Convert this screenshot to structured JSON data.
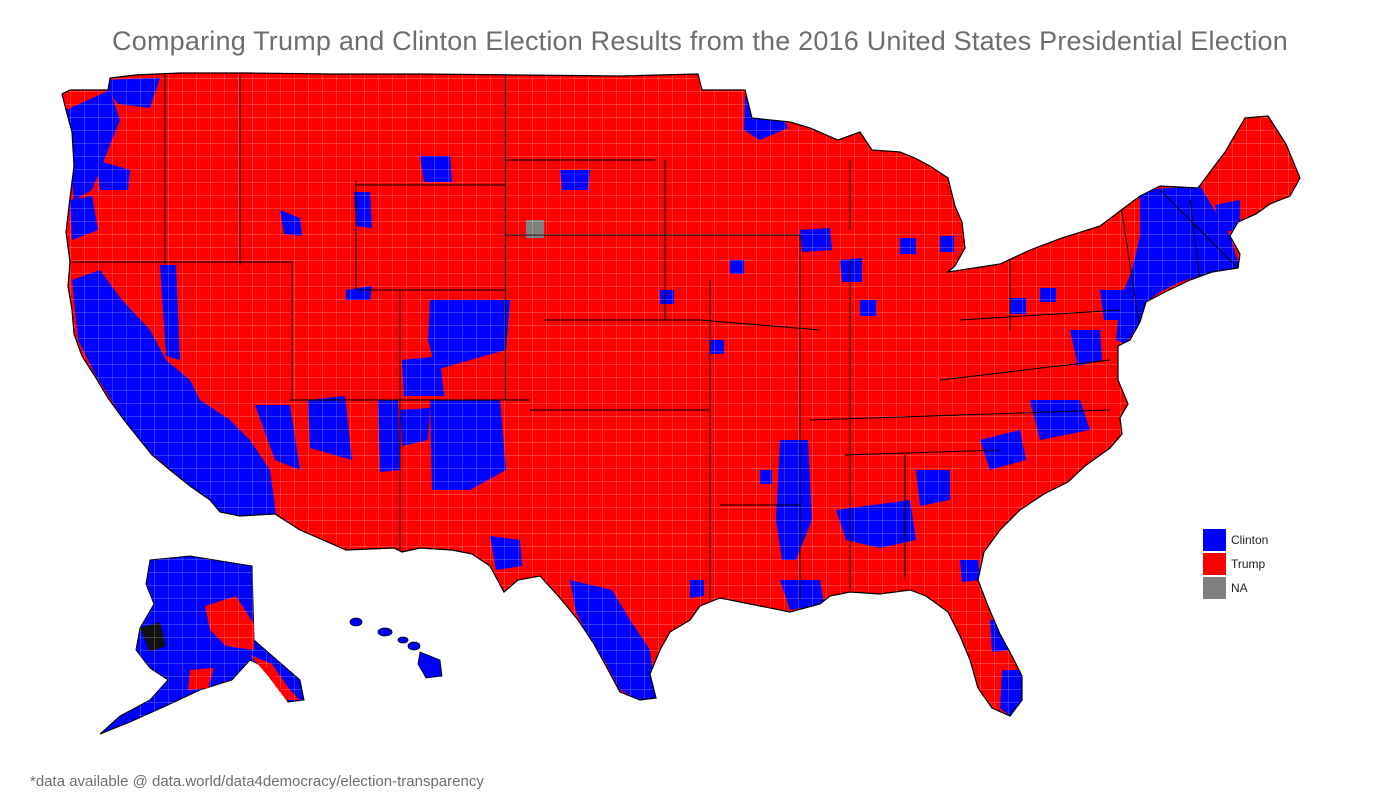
{
  "title": "Comparing Trump and Clinton Election Results from the 2016 United States Presidential Election",
  "footnote": "*data available @ data.world/data4democracy/election-transparency",
  "colors": {
    "clinton": "#0000ff",
    "trump": "#ff0000",
    "na": "#808080",
    "border": "#ffffff",
    "state_border": "#000000"
  },
  "legend": [
    {
      "label": "Clinton",
      "color": "#0000ff"
    },
    {
      "label": "Trump",
      "color": "#ff0000"
    },
    {
      "label": "NA",
      "color": "#808080"
    }
  ]
}
